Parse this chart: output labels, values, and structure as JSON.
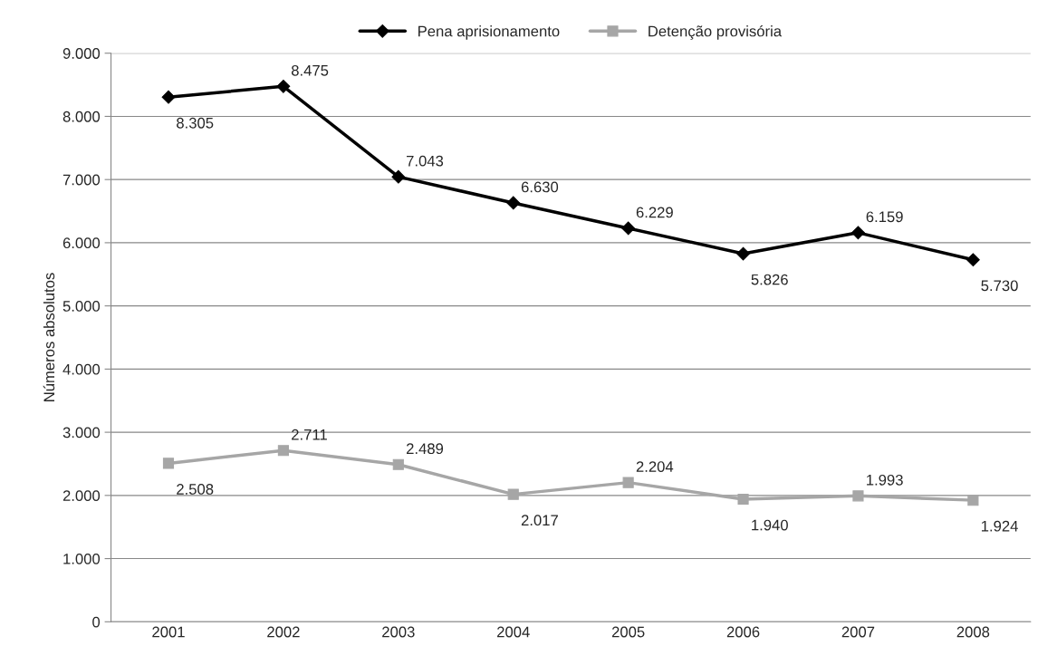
{
  "chart_data": {
    "type": "line",
    "ylabel": "Números absolutos",
    "categories": [
      "2001",
      "2002",
      "2003",
      "2004",
      "2005",
      "2006",
      "2007",
      "2008"
    ],
    "series": [
      {
        "name": "Pena aprisionamento",
        "color": "#000000",
        "marker": "diamond",
        "values": [
          8305,
          8475,
          7043,
          6630,
          6229,
          5826,
          6159,
          5730
        ],
        "value_labels": [
          "8.305",
          "8.475",
          "7.043",
          "6.630",
          "6.229",
          "5.826",
          "6.159",
          "5.730"
        ]
      },
      {
        "name": "Detenção provisória",
        "color": "#a6a6a6",
        "marker": "square",
        "values": [
          2508,
          2711,
          2489,
          2017,
          2204,
          1940,
          1993,
          1924
        ],
        "value_labels": [
          "2.508",
          "2.711",
          "2.489",
          "2.017",
          "2.204",
          "1.940",
          "1.993",
          "1.924"
        ]
      }
    ],
    "ylim": [
      0,
      9000
    ],
    "yticks": [
      0,
      {
        "value": 1000,
        "label": "1.000"
      },
      {
        "value": 2000,
        "label": "2.000"
      },
      {
        "value": 3000,
        "label": "3.000"
      },
      {
        "value": 4000,
        "label": "4.000"
      },
      {
        "value": 5000,
        "label": "5.000"
      },
      {
        "value": 6000,
        "label": "6.000"
      },
      {
        "value": 7000,
        "label": "7.000"
      },
      {
        "value": 8000,
        "label": "8.000"
      },
      {
        "value": 9000,
        "label": "9.000"
      }
    ],
    "grid": "y",
    "legend": "top",
    "line_style": "solid"
  }
}
